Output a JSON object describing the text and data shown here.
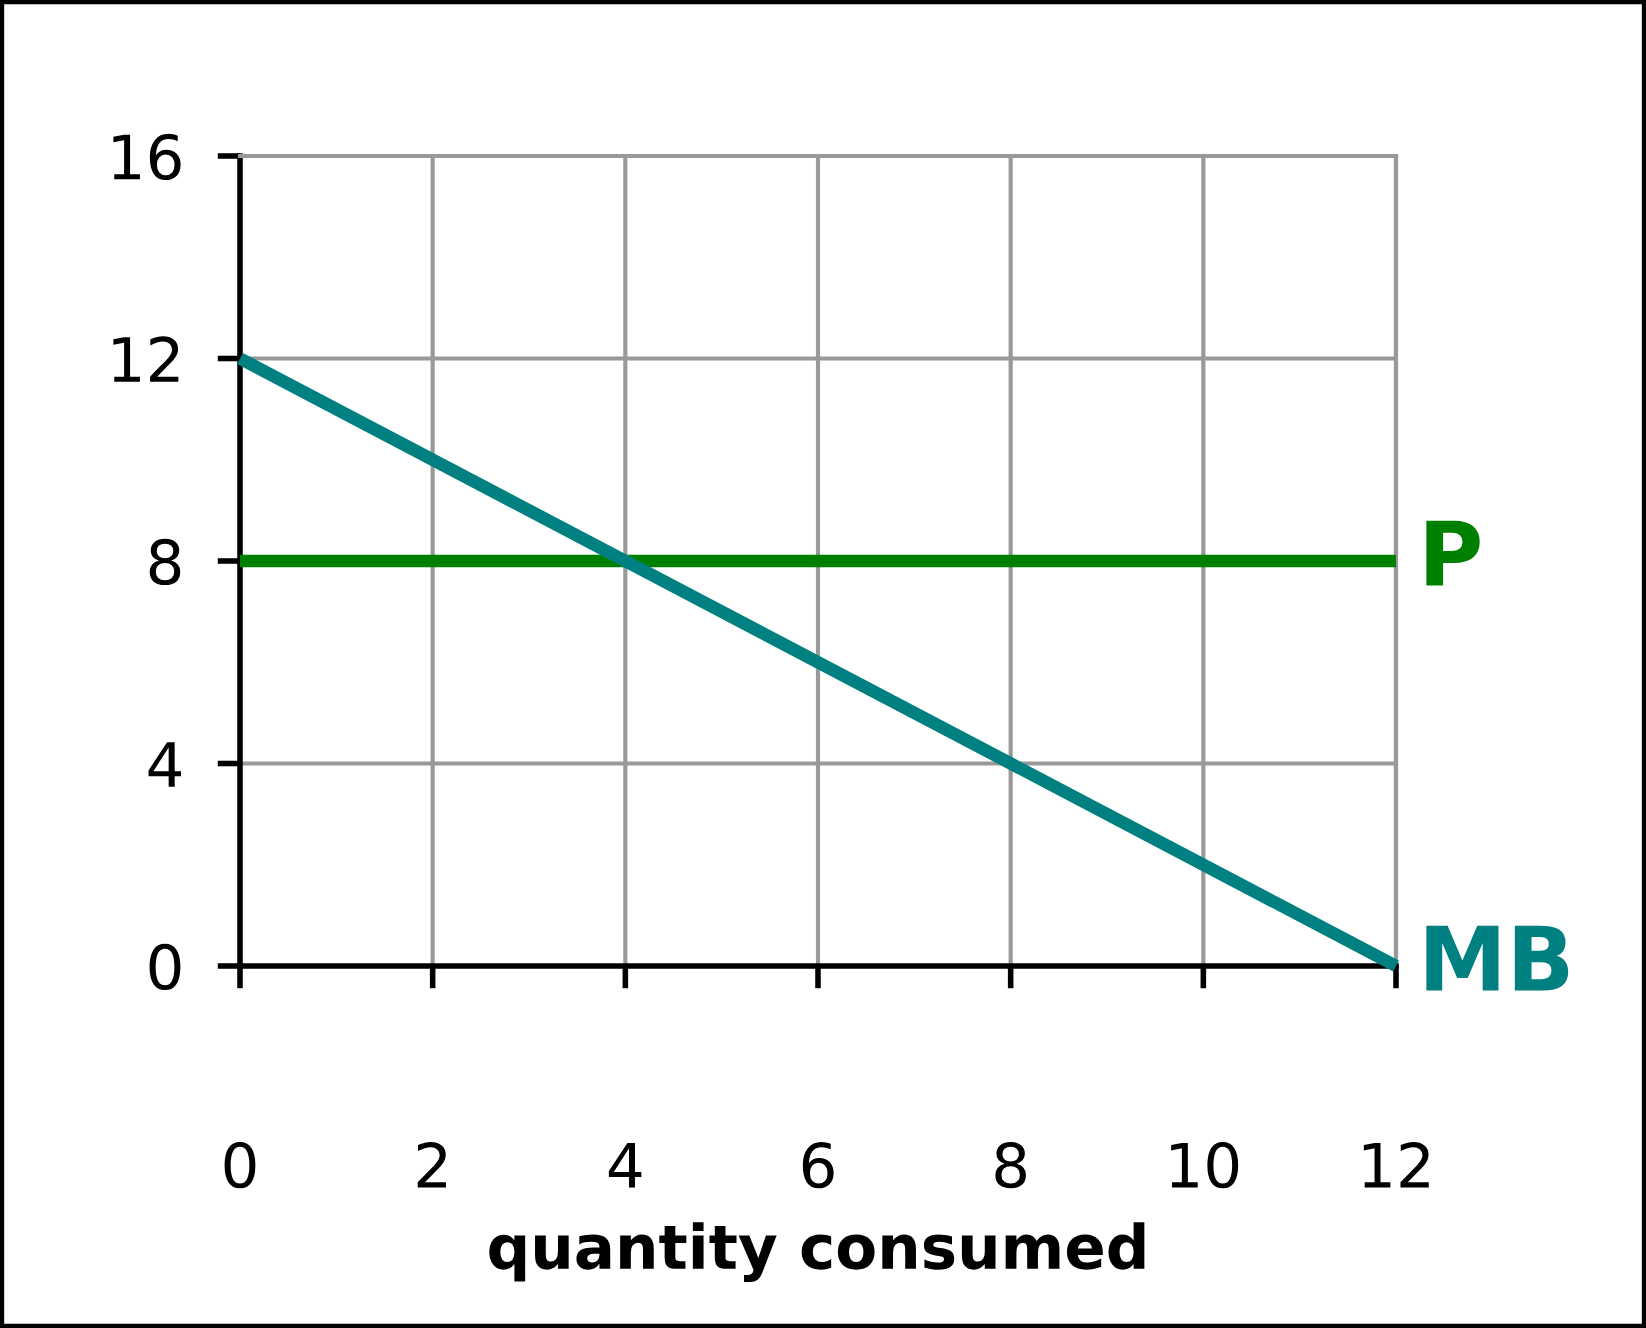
{
  "chart_data": {
    "type": "line",
    "x": [
      0,
      12
    ],
    "xlabel": "quantity consumed",
    "xlim": [
      0,
      12
    ],
    "ylim": [
      0,
      16
    ],
    "xticks": [
      0,
      2,
      4,
      6,
      8,
      10,
      12
    ],
    "yticks": [
      0,
      4,
      8,
      12,
      16
    ],
    "grid": true,
    "legend": false,
    "marker": "none",
    "line_style": "solid",
    "series": [
      {
        "name": "P",
        "color": "#008000",
        "values": [
          8,
          8
        ]
      },
      {
        "name": "MB",
        "color": "#008080",
        "values": [
          12,
          0
        ]
      }
    ]
  }
}
